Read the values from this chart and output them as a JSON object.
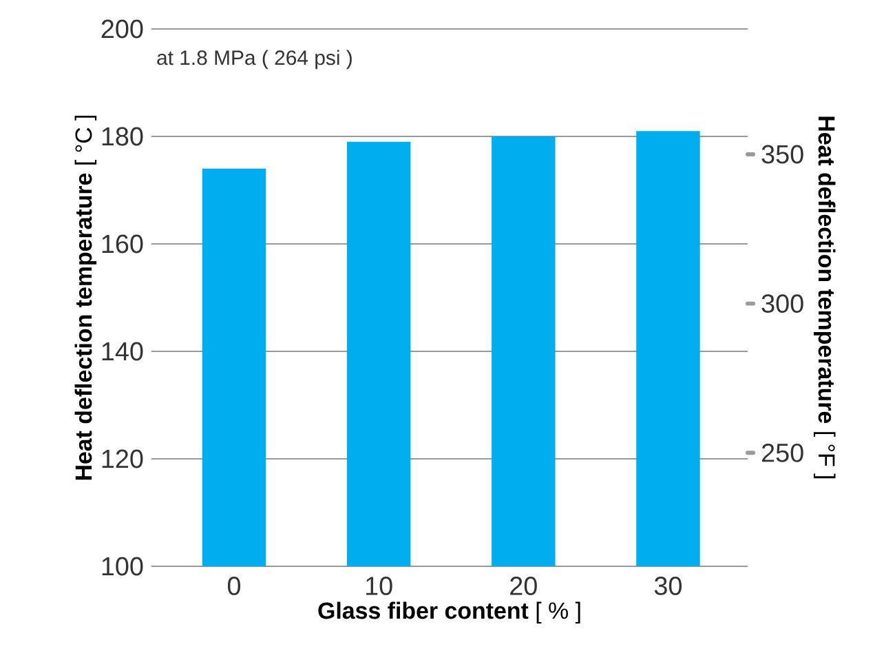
{
  "chart_data": {
    "type": "bar",
    "categories": [
      "0",
      "10",
      "20",
      "30"
    ],
    "values": [
      174,
      179,
      180,
      181
    ],
    "color": "#00aeef",
    "xlabel": "**Glass fiber content** [ % ]",
    "ylabel": "**Heat deflection temperature** [ °C ]",
    "y2label": "**Heat deflection temperature** [ °F ]",
    "ylim": [
      100,
      200
    ],
    "yticks": [
      100,
      120,
      140,
      160,
      180,
      200
    ],
    "y2lim": [
      212,
      392
    ],
    "y2ticks": [
      250,
      300,
      350
    ],
    "grid": "y",
    "annotations": [
      "at 1.8 MPa ( 264 psi )"
    ]
  }
}
